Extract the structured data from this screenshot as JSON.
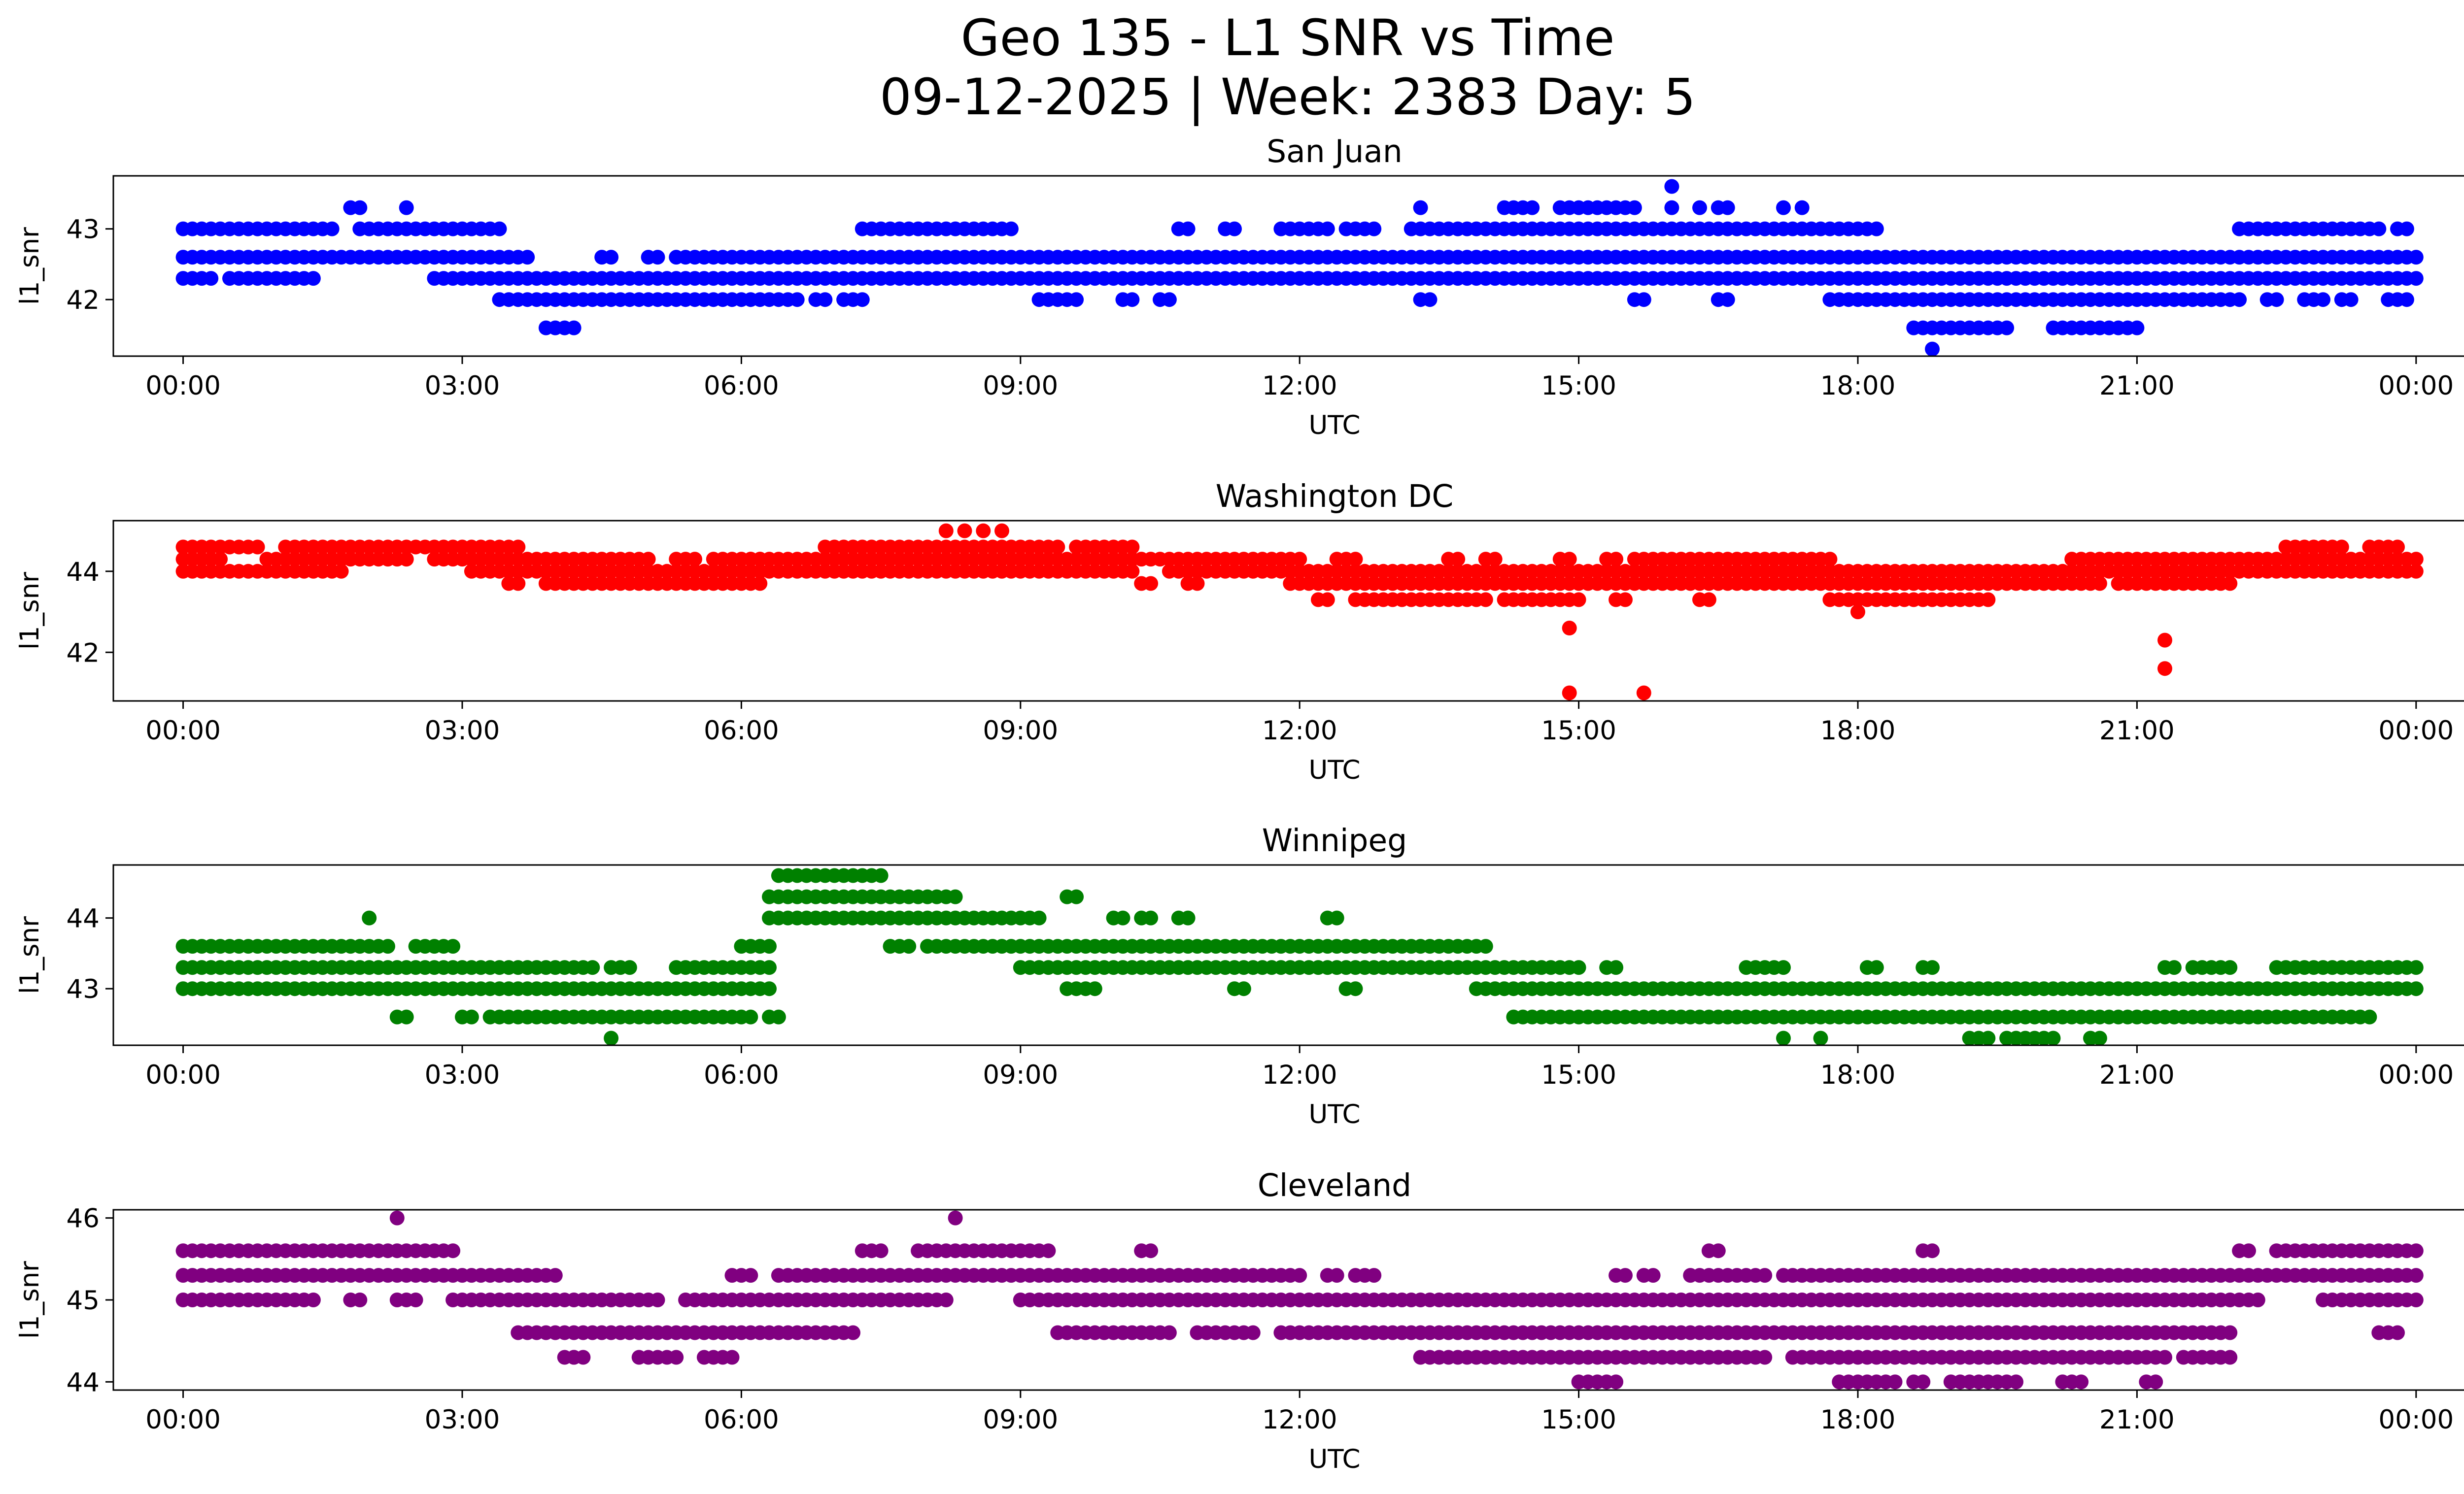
{
  "figure": {
    "title_line1": "Geo 135 - L1 SNR vs Time",
    "title_line2": "09-12-2025 | Week: 2383 Day: 5"
  },
  "chart_data": [
    {
      "type": "scatter",
      "title": "San Juan",
      "xlabel": "UTC",
      "ylabel": "l1_snr",
      "color": "#0000ff",
      "x_range_hours": [
        -0.75,
        25.5
      ],
      "x_ticks": [
        "00:00",
        "03:00",
        "06:00",
        "09:00",
        "12:00",
        "15:00",
        "18:00",
        "21:00",
        "00:00"
      ],
      "ylim": [
        41.2,
        43.75
      ],
      "y_ticks": [
        42,
        43
      ],
      "levels": [
        {
          "y": 43.0,
          "segments": [
            [
              0.0,
              1.6
            ],
            [
              1.9,
              2.7
            ],
            [
              2.8,
              3.0
            ],
            [
              3.1,
              3.2
            ],
            [
              3.3,
              3.4
            ],
            [
              7.3,
              7.5
            ],
            [
              7.6,
              8.9
            ],
            [
              10.7,
              10.8
            ],
            [
              11.2,
              11.3
            ],
            [
              11.8,
              11.9
            ],
            [
              12.0,
              12.3
            ],
            [
              12.5,
              12.8
            ],
            [
              13.2,
              13.4
            ],
            [
              13.5,
              17.9
            ],
            [
              18.0,
              18.2
            ],
            [
              22.1,
              22.4
            ],
            [
              22.5,
              23.4
            ],
            [
              23.5,
              23.6
            ],
            [
              23.8,
              23.9
            ]
          ]
        },
        {
          "y": 42.6,
          "segments": [
            [
              0.0,
              3.7
            ],
            [
              4.5,
              4.6
            ],
            [
              5.0,
              5.1
            ],
            [
              5.3,
              24.0
            ]
          ]
        },
        {
          "y": 42.3,
          "segments": [
            [
              0.0,
              0.3
            ],
            [
              0.5,
              1.0
            ],
            [
              1.1,
              1.4
            ],
            [
              2.7,
              24.0
            ]
          ]
        },
        {
          "y": 42.0,
          "segments": [
            [
              3.4,
              6.6
            ],
            [
              6.8,
              6.9
            ],
            [
              7.1,
              7.3
            ],
            [
              9.2,
              9.6
            ],
            [
              10.1,
              10.2
            ],
            [
              10.5,
              10.6
            ],
            [
              13.3,
              13.4
            ],
            [
              15.6,
              15.7
            ],
            [
              16.5,
              16.6
            ],
            [
              17.7,
              17.9
            ],
            [
              18.0,
              22.1
            ],
            [
              22.4,
              22.5
            ],
            [
              22.8,
              23.0
            ],
            [
              23.2,
              23.3
            ],
            [
              23.7,
              23.9
            ]
          ]
        },
        {
          "y": 41.6,
          "segments": [
            [
              3.9,
              4.2
            ],
            [
              18.6,
              19.6
            ],
            [
              20.1,
              21.0
            ]
          ]
        }
      ],
      "points": [
        [
          1.8,
          43.3
        ],
        [
          1.9,
          43.3
        ],
        [
          2.4,
          43.3
        ],
        [
          13.3,
          43.3
        ],
        [
          14.2,
          43.3
        ],
        [
          14.3,
          43.3
        ],
        [
          14.4,
          43.3
        ],
        [
          14.5,
          43.3
        ],
        [
          14.8,
          43.3
        ],
        [
          14.9,
          43.3
        ],
        [
          15.0,
          43.3
        ],
        [
          15.1,
          43.3
        ],
        [
          15.2,
          43.3
        ],
        [
          15.3,
          43.3
        ],
        [
          15.4,
          43.3
        ],
        [
          15.5,
          43.3
        ],
        [
          15.6,
          43.3
        ],
        [
          16.0,
          43.3
        ],
        [
          16.3,
          43.3
        ],
        [
          16.5,
          43.3
        ],
        [
          16.6,
          43.3
        ],
        [
          17.2,
          43.3
        ],
        [
          17.4,
          43.3
        ],
        [
          16.0,
          43.6
        ],
        [
          18.8,
          41.3
        ]
      ]
    },
    {
      "type": "scatter",
      "title": "Washington DC",
      "xlabel": "UTC",
      "ylabel": "l1_snr",
      "color": "#ff0000",
      "x_range_hours": [
        -0.75,
        25.5
      ],
      "x_ticks": [
        "00:00",
        "03:00",
        "06:00",
        "09:00",
        "12:00",
        "15:00",
        "18:00",
        "21:00",
        "00:00"
      ],
      "ylim": [
        40.8,
        45.25
      ],
      "y_ticks": [
        42,
        44
      ],
      "levels": [
        {
          "y": 44.6,
          "segments": [
            [
              0.0,
              0.8
            ],
            [
              1.1,
              3.6
            ],
            [
              6.9,
              9.4
            ],
            [
              9.6,
              10.2
            ],
            [
              22.6,
              23.2
            ],
            [
              23.5,
              23.8
            ]
          ]
        },
        {
          "y": 44.3,
          "segments": [
            [
              0.0,
              0.4
            ],
            [
              0.9,
              2.4
            ],
            [
              2.7,
              3.3
            ],
            [
              3.4,
              5.0
            ],
            [
              5.3,
              5.5
            ],
            [
              5.7,
              6.2
            ],
            [
              6.1,
              12.0
            ],
            [
              12.4,
              12.6
            ],
            [
              13.6,
              13.7
            ],
            [
              14.0,
              14.1
            ],
            [
              14.8,
              14.9
            ],
            [
              15.3,
              15.4
            ],
            [
              15.6,
              17.7
            ],
            [
              20.3,
              24.0
            ]
          ]
        },
        {
          "y": 44.0,
          "segments": [
            [
              0.0,
              1.5
            ],
            [
              1.6,
              1.7
            ],
            [
              3.1,
              10.2
            ],
            [
              10.6,
              12.0
            ],
            [
              12.1,
              24.0
            ]
          ]
        },
        {
          "y": 43.7,
          "segments": [
            [
              3.5,
              3.6
            ],
            [
              3.9,
              6.2
            ],
            [
              10.3,
              10.4
            ],
            [
              10.8,
              10.9
            ],
            [
              11.9,
              20.6
            ],
            [
              20.8,
              22.0
            ]
          ]
        },
        {
          "y": 43.3,
          "segments": [
            [
              12.2,
              12.3
            ],
            [
              12.6,
              12.9
            ],
            [
              13.0,
              13.4
            ],
            [
              13.5,
              14.0
            ],
            [
              14.2,
              15.0
            ],
            [
              15.4,
              15.5
            ],
            [
              16.3,
              16.4
            ],
            [
              17.7,
              18.1
            ],
            [
              18.2,
              19.4
            ]
          ]
        }
      ],
      "points": [
        [
          8.2,
          45.0
        ],
        [
          8.4,
          45.0
        ],
        [
          8.6,
          45.0
        ],
        [
          8.8,
          45.0
        ],
        [
          18.0,
          43.0
        ],
        [
          14.9,
          42.6
        ],
        [
          14.9,
          41.0
        ],
        [
          15.7,
          41.0
        ],
        [
          21.3,
          42.3
        ],
        [
          21.3,
          41.6
        ]
      ]
    },
    {
      "type": "scatter",
      "title": "Winnipeg",
      "xlabel": "UTC",
      "ylabel": "l1_snr",
      "color": "#008000",
      "x_range_hours": [
        -0.75,
        25.5
      ],
      "x_ticks": [
        "00:00",
        "03:00",
        "06:00",
        "09:00",
        "12:00",
        "15:00",
        "18:00",
        "21:00",
        "00:00"
      ],
      "ylim": [
        42.2,
        44.75
      ],
      "y_ticks": [
        43,
        44
      ],
      "levels": [
        {
          "y": 44.6,
          "segments": [
            [
              6.4,
              7.5
            ]
          ]
        },
        {
          "y": 44.3,
          "segments": [
            [
              6.3,
              8.3
            ],
            [
              9.5,
              9.6
            ]
          ]
        },
        {
          "y": 44.0,
          "segments": [
            [
              6.3,
              9.2
            ],
            [
              10.0,
              10.1
            ],
            [
              10.3,
              10.4
            ],
            [
              10.7,
              10.8
            ],
            [
              12.3,
              12.4
            ]
          ]
        },
        {
          "y": 43.6,
          "segments": [
            [
              0.0,
              0.2
            ],
            [
              0.3,
              2.2
            ],
            [
              2.5,
              2.9
            ],
            [
              6.0,
              6.3
            ],
            [
              7.6,
              7.8
            ],
            [
              8.0,
              14.0
            ]
          ]
        },
        {
          "y": 43.3,
          "segments": [
            [
              0.0,
              4.4
            ],
            [
              4.6,
              4.8
            ],
            [
              5.3,
              6.3
            ],
            [
              9.0,
              15.0
            ],
            [
              15.3,
              15.4
            ],
            [
              16.8,
              17.2
            ],
            [
              18.1,
              18.2
            ],
            [
              18.7,
              18.8
            ],
            [
              21.3,
              21.4
            ],
            [
              21.6,
              22.0
            ],
            [
              22.5,
              22.8
            ],
            [
              22.9,
              24.0
            ]
          ]
        },
        {
          "y": 43.0,
          "segments": [
            [
              0.0,
              6.3
            ],
            [
              9.5,
              9.8
            ],
            [
              11.3,
              11.4
            ],
            [
              12.5,
              12.6
            ],
            [
              13.9,
              24.0
            ]
          ]
        },
        {
          "y": 42.6,
          "segments": [
            [
              2.3,
              2.4
            ],
            [
              3.0,
              3.1
            ],
            [
              3.3,
              6.1
            ],
            [
              6.3,
              6.4
            ],
            [
              14.3,
              23.5
            ]
          ]
        },
        {
          "y": 42.3,
          "segments": [
            [
              4.6,
              4.6
            ],
            [
              17.2,
              17.2
            ],
            [
              17.6,
              17.6
            ],
            [
              19.2,
              19.4
            ],
            [
              19.6,
              20.1
            ],
            [
              20.5,
              20.6
            ]
          ]
        }
      ],
      "points": [
        [
          2.0,
          44.0
        ]
      ]
    },
    {
      "type": "scatter",
      "title": "Cleveland",
      "xlabel": "UTC",
      "ylabel": "l1_snr",
      "color": "#800080",
      "x_range_hours": [
        -0.75,
        25.5
      ],
      "x_ticks": [
        "00:00",
        "03:00",
        "06:00",
        "09:00",
        "12:00",
        "15:00",
        "18:00",
        "21:00",
        "00:00"
      ],
      "ylim": [
        43.9,
        46.1
      ],
      "y_ticks": [
        44,
        45,
        46
      ],
      "levels": [
        {
          "y": 45.6,
          "segments": [
            [
              0.0,
              0.6
            ],
            [
              0.7,
              2.9
            ],
            [
              7.3,
              7.5
            ],
            [
              7.9,
              9.3
            ],
            [
              10.3,
              10.4
            ],
            [
              16.4,
              16.5
            ],
            [
              18.7,
              18.8
            ],
            [
              22.1,
              22.2
            ],
            [
              22.5,
              24.0
            ]
          ]
        },
        {
          "y": 45.3,
          "segments": [
            [
              0.0,
              4.0
            ],
            [
              6.0,
              6.1
            ],
            [
              6.4,
              12.0
            ],
            [
              12.3,
              12.4
            ],
            [
              12.6,
              12.8
            ],
            [
              15.4,
              15.5
            ],
            [
              15.7,
              15.8
            ],
            [
              16.2,
              17.0
            ],
            [
              17.2,
              24.0
            ]
          ]
        },
        {
          "y": 45.0,
          "segments": [
            [
              0.0,
              1.4
            ],
            [
              1.8,
              1.9
            ],
            [
              2.3,
              2.5
            ],
            [
              2.9,
              5.1
            ],
            [
              5.4,
              8.2
            ],
            [
              9.0,
              9.2
            ],
            [
              9.3,
              22.3
            ],
            [
              23.0,
              24.0
            ]
          ]
        },
        {
          "y": 44.6,
          "segments": [
            [
              3.6,
              7.2
            ],
            [
              9.4,
              10.6
            ],
            [
              10.9,
              11.5
            ],
            [
              11.8,
              22.0
            ],
            [
              23.6,
              23.8
            ]
          ]
        },
        {
          "y": 44.3,
          "segments": [
            [
              4.1,
              4.3
            ],
            [
              4.9,
              5.3
            ],
            [
              5.6,
              5.9
            ],
            [
              13.3,
              17.0
            ],
            [
              17.3,
              21.3
            ],
            [
              21.5,
              22.0
            ]
          ]
        },
        {
          "y": 44.0,
          "segments": [
            [
              15.0,
              15.4
            ],
            [
              17.8,
              18.4
            ],
            [
              18.6,
              18.7
            ],
            [
              19.0,
              19.7
            ],
            [
              20.2,
              20.4
            ],
            [
              21.1,
              21.2
            ]
          ]
        }
      ],
      "points": [
        [
          2.3,
          46.0
        ],
        [
          8.3,
          46.0
        ],
        [
          5.9,
          45.3
        ],
        [
          4.2,
          44.3
        ]
      ]
    }
  ]
}
